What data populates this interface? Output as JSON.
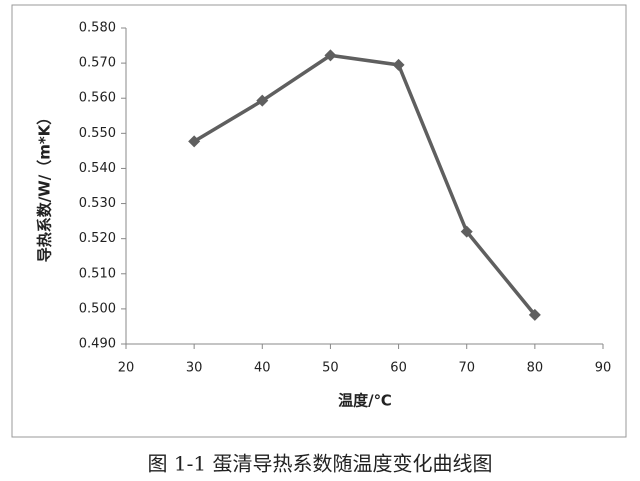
{
  "chart_data": {
    "type": "line",
    "x_label": "温度/℃",
    "y_label": "导热系数/W/（m*K）",
    "caption": "图 1-1  蛋清导热系数随温度变化曲线图",
    "x": [
      30,
      40,
      50,
      60,
      70,
      80
    ],
    "values": [
      0.5477,
      0.5593,
      0.5722,
      0.5695,
      0.522,
      0.4983
    ],
    "color": "#5f5f5f",
    "marker": "diamond",
    "xlim": [
      20,
      90
    ],
    "xticks": [
      20,
      30,
      40,
      50,
      60,
      70,
      80,
      90
    ],
    "ylim": [
      0.49,
      0.58
    ],
    "yticks": [
      {
        "value": 0.49,
        "label": "0.490"
      },
      {
        "value": 0.5,
        "label": "0.500"
      },
      {
        "value": 0.51,
        "label": "0.510"
      },
      {
        "value": 0.52,
        "label": "0.520"
      },
      {
        "value": 0.53,
        "label": "0.530"
      },
      {
        "value": 0.54,
        "label": "0.540"
      },
      {
        "value": 0.55,
        "label": "0.550"
      },
      {
        "value": 0.56,
        "label": "0.560"
      },
      {
        "value": 0.57,
        "label": "0.570"
      },
      {
        "value": 0.58,
        "label": "0.580"
      }
    ],
    "grid": false
  }
}
